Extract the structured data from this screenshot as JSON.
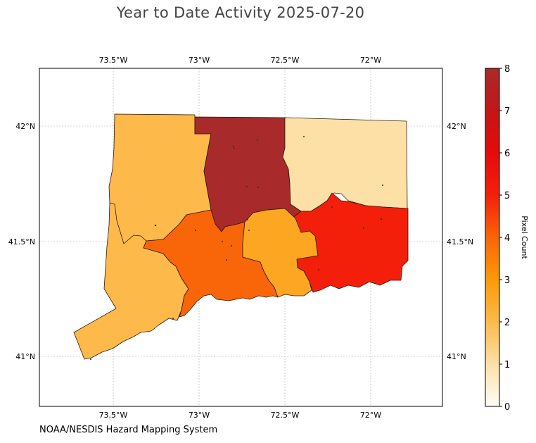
{
  "title": "Year to Date Activity 2025-07-20",
  "credit": "NOAA/NESDIS Hazard Mapping System",
  "map": {
    "lon_range": [
      -73.9,
      -71.55
    ],
    "lat_range": [
      40.78,
      42.25
    ],
    "lon_ticks": [
      {
        "value": -73.5,
        "label": "73.5°W"
      },
      {
        "value": -73.0,
        "label": "73°W"
      },
      {
        "value": -72.5,
        "label": "72.5°W"
      },
      {
        "value": -72.0,
        "label": "72°W"
      }
    ],
    "lat_ticks": [
      {
        "value": 42.0,
        "label": "42°N"
      },
      {
        "value": 41.5,
        "label": "41.5°N"
      },
      {
        "value": 41.0,
        "label": "41°N"
      }
    ],
    "regions": [
      {
        "id": "litchfield-fairfield",
        "pixel_count": 2
      },
      {
        "id": "hartford",
        "pixel_count": 8
      },
      {
        "id": "tolland-windham",
        "pixel_count": 1
      },
      {
        "id": "new-london",
        "pixel_count": 5
      },
      {
        "id": "new-haven",
        "pixel_count": 4
      },
      {
        "id": "middlesex",
        "pixel_count": 2.6
      }
    ]
  },
  "colorbar": {
    "label": "Pixel Count",
    "min": 0,
    "max": 8,
    "ticks": [
      "0",
      "1",
      "2",
      "3",
      "4",
      "5",
      "6",
      "7",
      "8"
    ],
    "stops": [
      {
        "v": 0,
        "color": "#fffdf7"
      },
      {
        "v": 1,
        "color": "#fde0a6"
      },
      {
        "v": 2,
        "color": "#fdb94a"
      },
      {
        "v": 3,
        "color": "#fb9a08"
      },
      {
        "v": 4,
        "color": "#f96509"
      },
      {
        "v": 5,
        "color": "#f41f0a"
      },
      {
        "v": 6,
        "color": "#e40b0b"
      },
      {
        "v": 7,
        "color": "#c31616"
      },
      {
        "v": 8,
        "color": "#a82a2a"
      }
    ]
  }
}
